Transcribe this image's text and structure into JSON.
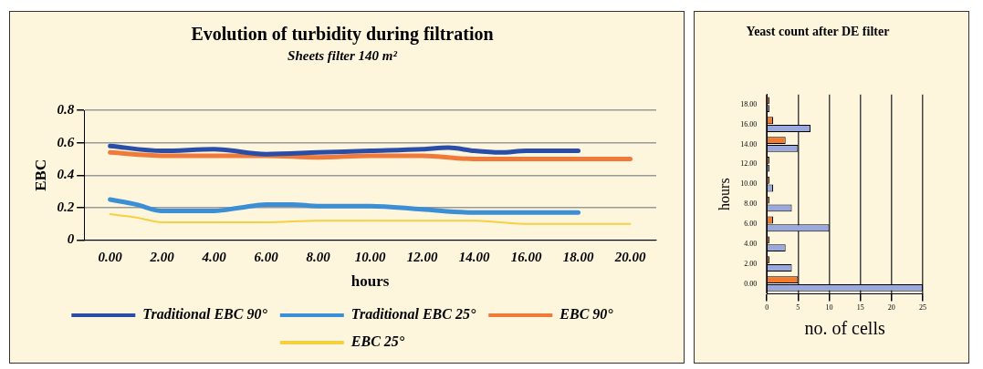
{
  "chart_data": [
    {
      "type": "line",
      "title": "Evolution of turbidity during filtration",
      "subtitle": "Sheets filter 140 m²",
      "xlabel": "hours",
      "ylabel": "EBC",
      "xlim": [
        -1,
        21
      ],
      "xticks": [
        {
          "value": 0,
          "label": "0.00"
        },
        {
          "value": 2,
          "label": "2.00"
        },
        {
          "value": 4,
          "label": "4.00"
        },
        {
          "value": 6,
          "label": "6.00"
        },
        {
          "value": 8,
          "label": "8.00"
        },
        {
          "value": 10,
          "label": "10.00"
        },
        {
          "value": 12,
          "label": "12.00"
        },
        {
          "value": 14,
          "label": "14.00"
        },
        {
          "value": 16,
          "label": "16.00"
        },
        {
          "value": 18,
          "label": "18.00"
        },
        {
          "value": 20,
          "label": "20.00"
        }
      ],
      "ylim": [
        0,
        0.8
      ],
      "yticks": [
        0,
        0.2,
        0.4,
        0.6,
        0.8
      ],
      "grid": "y",
      "legend": "bottom",
      "marker": "none",
      "line_style": "solid",
      "series": [
        {
          "name": "Traditional EBC 90°",
          "color": "#2a4ea8",
          "x": [
            0,
            2,
            4,
            6,
            8,
            10,
            12,
            13,
            14,
            15,
            16,
            18
          ],
          "values": [
            0.58,
            0.55,
            0.56,
            0.53,
            0.54,
            0.55,
            0.56,
            0.57,
            0.55,
            0.54,
            0.55,
            0.55
          ]
        },
        {
          "name": "Traditional EBC 25°",
          "color": "#3c8fd4",
          "x": [
            0,
            1,
            2,
            3,
            4,
            5,
            6,
            7,
            8,
            10,
            12,
            14,
            16,
            18
          ],
          "values": [
            0.25,
            0.22,
            0.18,
            0.18,
            0.18,
            0.2,
            0.22,
            0.22,
            0.21,
            0.21,
            0.19,
            0.17,
            0.17,
            0.17
          ]
        },
        {
          "name": "EBC 90°",
          "color": "#f07a3a",
          "x": [
            0,
            2,
            4,
            6,
            8,
            10,
            12,
            14,
            16,
            18,
            20
          ],
          "values": [
            0.54,
            0.52,
            0.52,
            0.52,
            0.51,
            0.52,
            0.52,
            0.5,
            0.5,
            0.5,
            0.5
          ]
        },
        {
          "name": "EBC 25°",
          "color": "#f5d040",
          "x": [
            0,
            1,
            2,
            4,
            6,
            8,
            10,
            12,
            14,
            15,
            16,
            18,
            20
          ],
          "values": [
            0.16,
            0.14,
            0.11,
            0.11,
            0.11,
            0.12,
            0.12,
            0.12,
            0.12,
            0.11,
            0.1,
            0.1,
            0.1
          ]
        }
      ]
    },
    {
      "type": "bar",
      "orientation": "horizontal",
      "title": "Yeast count after DE filter",
      "xlabel": "no. of cells",
      "ylabel": "hours",
      "categories": [
        "18.00",
        "16.00",
        "14.00",
        "12.00",
        "10.00",
        "8.00",
        "6.00",
        "4.00",
        "2.00",
        "0.00"
      ],
      "xlim": [
        0,
        25
      ],
      "xticks": [
        0,
        5,
        10,
        15,
        20,
        25
      ],
      "grid": "x",
      "series": [
        {
          "color": "#f07a30",
          "values": [
            0.4,
            1,
            3,
            0.4,
            0.4,
            0.4,
            1,
            0.4,
            0.4,
            5
          ]
        },
        {
          "color": "#9aa8e0",
          "values": [
            0.4,
            7,
            5,
            0.4,
            1,
            4,
            10,
            3,
            4,
            25
          ]
        }
      ]
    }
  ]
}
